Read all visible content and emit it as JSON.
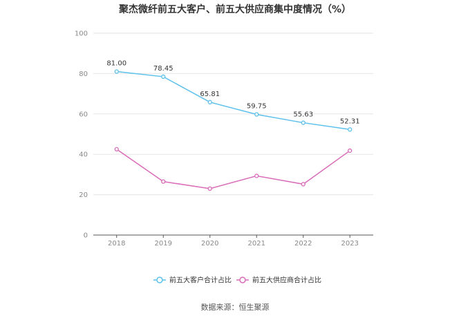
{
  "chart_data": {
    "type": "line",
    "title": "聚杰微纤前五大客户、前五大供应商集中度情况（%）",
    "source": "数据来源：恒生聚源",
    "categories": [
      "2018",
      "2019",
      "2020",
      "2021",
      "2022",
      "2023"
    ],
    "ylim": [
      0,
      100
    ],
    "yticks": [
      "0",
      "20",
      "40",
      "60",
      "80",
      "100"
    ],
    "grid": true,
    "legend_position": "bottom",
    "series": [
      {
        "name": "前五大客户合计占比",
        "color": "#5bc0eb",
        "values": [
          81.0,
          78.45,
          65.81,
          59.75,
          55.63,
          52.31
        ],
        "labels": [
          "81.00",
          "78.45",
          "65.81",
          "59.75",
          "55.63",
          "52.31"
        ]
      },
      {
        "name": "前五大供应商合计占比",
        "color": "#d96bb8",
        "values": [
          42.5,
          26.5,
          23.0,
          29.3,
          25.2,
          41.8
        ]
      }
    ]
  }
}
